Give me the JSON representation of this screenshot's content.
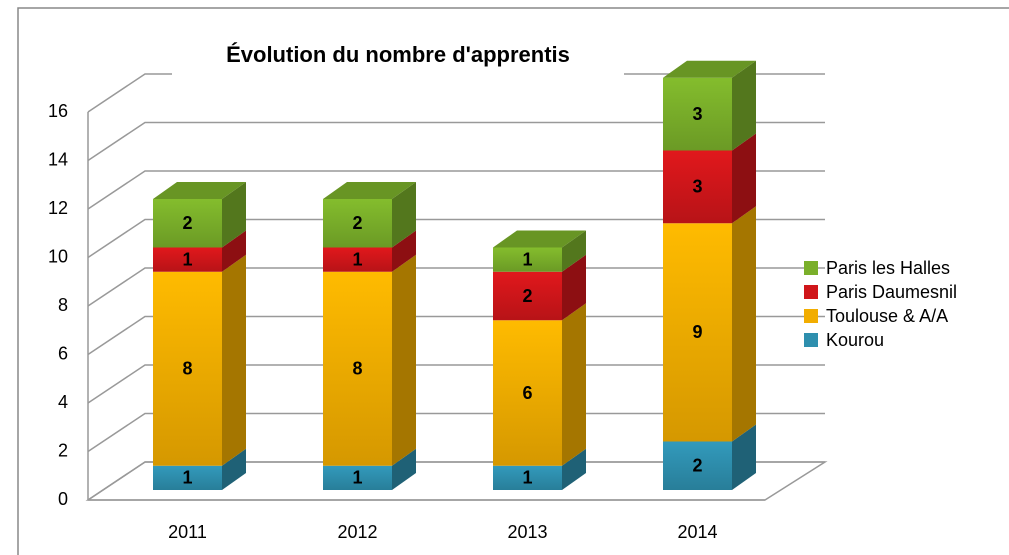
{
  "chart_data": {
    "type": "bar3d_stacked",
    "title": "Évolution du nombre d'apprentis",
    "categories": [
      "2011",
      "2012",
      "2013",
      "2014"
    ],
    "series": [
      {
        "name": "Kourou",
        "color": "#2e8fae",
        "values": [
          1,
          1,
          1,
          2
        ]
      },
      {
        "name": "Toulouse & A/A",
        "color": "#f2ad00",
        "values": [
          8,
          8,
          6,
          9
        ]
      },
      {
        "name": "Paris Daumesnil",
        "color": "#d0161a",
        "values": [
          1,
          1,
          2,
          3
        ]
      },
      {
        "name": "Paris les Halles",
        "color": "#7aaf2a",
        "values": [
          2,
          2,
          1,
          3
        ]
      }
    ],
    "ylim": [
      0,
      16
    ],
    "yticks": [
      0,
      2,
      4,
      6,
      8,
      10,
      12,
      14,
      16
    ],
    "grid": true,
    "legend": "right"
  }
}
